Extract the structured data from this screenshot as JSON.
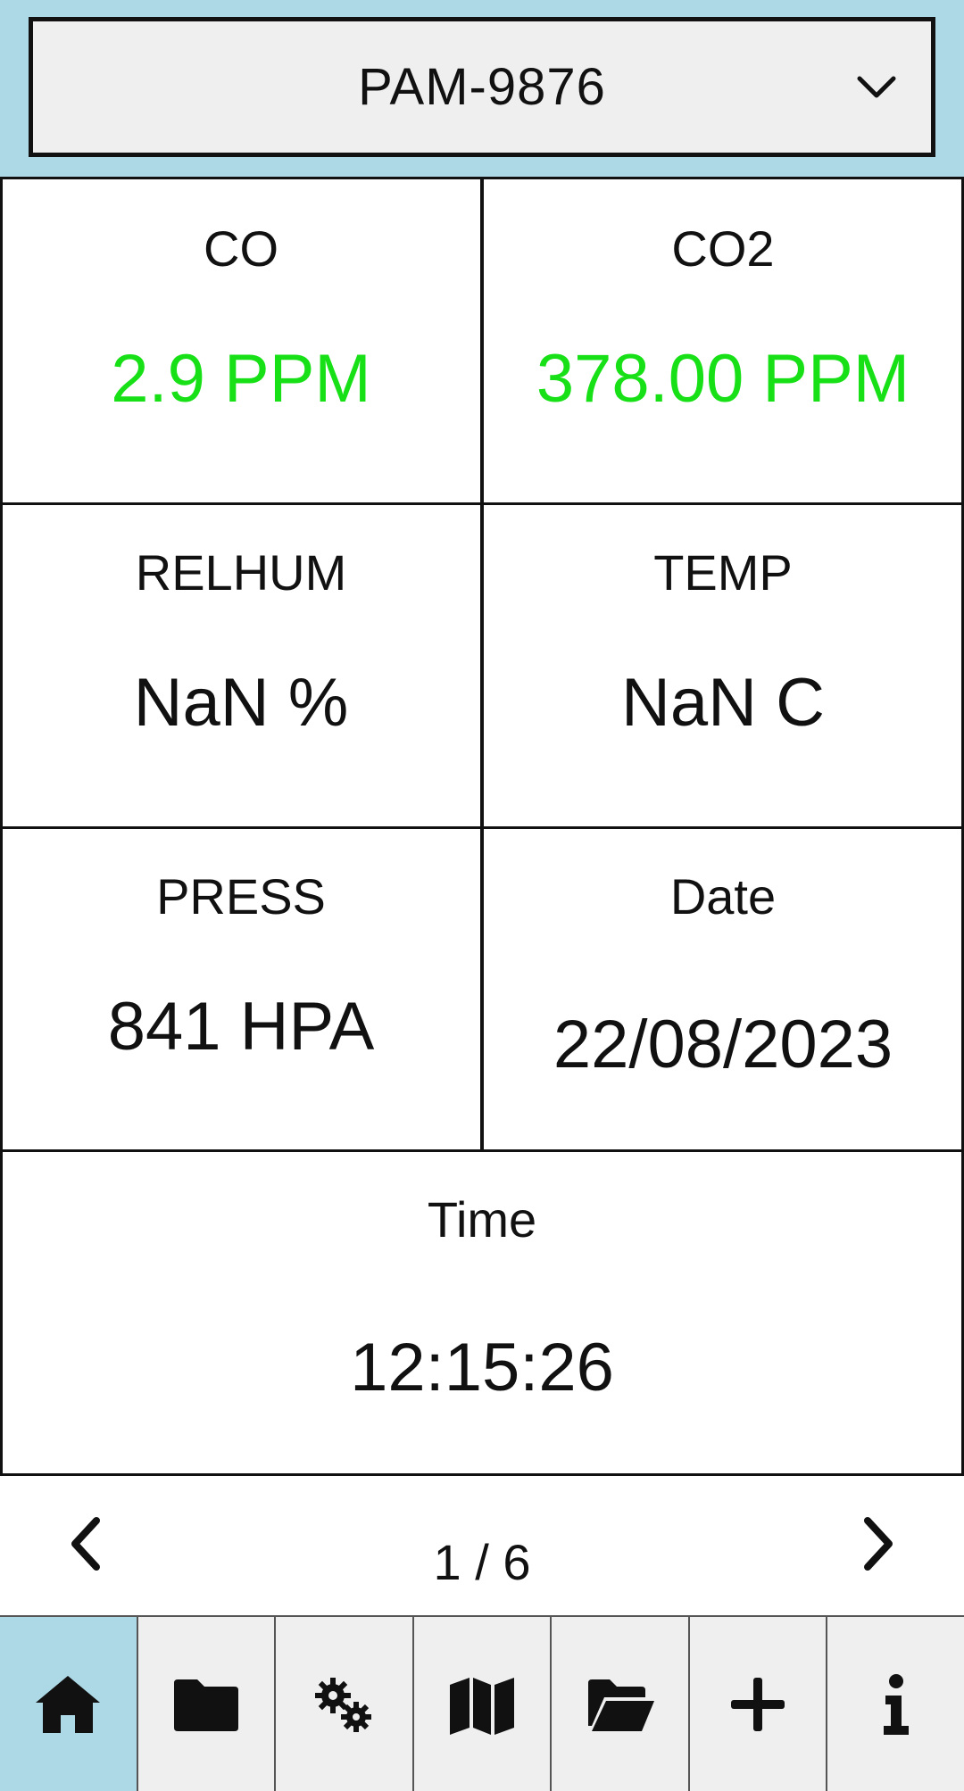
{
  "device_selector": {
    "selected": "PAM-9876",
    "icon": "chevron-down-icon"
  },
  "readings": {
    "co": {
      "title": "CO",
      "value": "2.9 PPM",
      "status_color": "#17e017"
    },
    "co2": {
      "title": "CO2",
      "value": "378.00 PPM",
      "status_color": "#17e017"
    },
    "relhum": {
      "title": "RELHUM",
      "value": "NaN %"
    },
    "temp": {
      "title": "TEMP",
      "value": "NaN C"
    },
    "press": {
      "title": "PRESS",
      "value": "841 HPA"
    },
    "date": {
      "title": "Date",
      "value": "22/08/2023"
    },
    "time": {
      "title": "Time",
      "value": "12:15:26"
    }
  },
  "pagination": {
    "text": "1 / 6",
    "prev_icon": "chevron-left-icon",
    "next_icon": "chevron-right-icon"
  },
  "bottom_nav": {
    "active": "home",
    "items": [
      {
        "name": "home",
        "icon": "home-icon"
      },
      {
        "name": "folder",
        "icon": "folder-icon"
      },
      {
        "name": "settings",
        "icon": "gears-icon"
      },
      {
        "name": "map",
        "icon": "map-icon"
      },
      {
        "name": "open-folder",
        "icon": "folder-open-icon"
      },
      {
        "name": "add",
        "icon": "plus-icon"
      },
      {
        "name": "info",
        "icon": "info-icon"
      }
    ]
  },
  "colors": {
    "accent": "#add8e6",
    "good": "#17e017",
    "panel": "#efefef"
  }
}
